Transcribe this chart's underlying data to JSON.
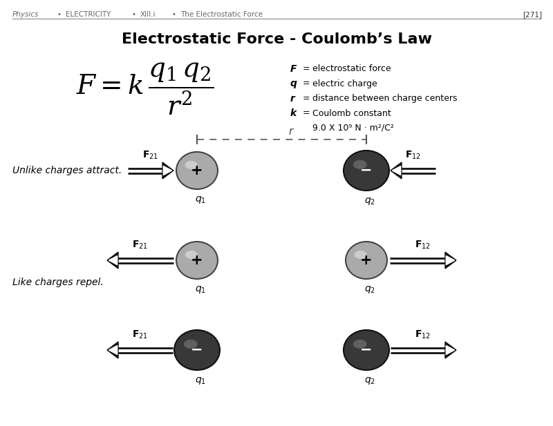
{
  "bg_color": "#ffffff",
  "title": "Electrostatic Force - Coulomb’s Law",
  "formula_legend": [
    [
      "F",
      "=  electrostatic force"
    ],
    [
      "q",
      "=  electric charge"
    ],
    [
      "r",
      "=  distance between charge centers"
    ],
    [
      "k",
      "=  Coulomb constant"
    ],
    [
      "",
      "9.0 X 10⁹ N · m²/C²"
    ]
  ],
  "unlike_label": "Unlike charges attract.",
  "like_label": "Like charges repel.",
  "sphere_light_color": "#aaaaaa",
  "sphere_dark_color": "#383838",
  "highlight_light": "#dddddd",
  "highlight_dark": "#686868",
  "arrow_color": "#111111"
}
